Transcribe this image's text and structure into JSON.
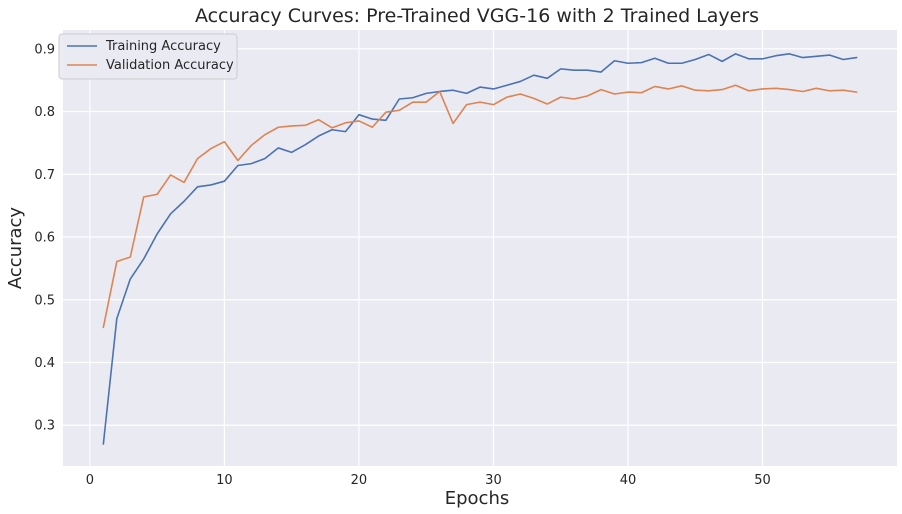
{
  "chart_data": {
    "type": "line",
    "title": "Accuracy Curves: Pre-Trained VGG-16 with 2 Trained Layers",
    "xlabel": "Epochs",
    "ylabel": "Accuracy",
    "xlim": [
      -2,
      60
    ],
    "ylim": [
      0.235,
      0.93
    ],
    "xticks": [
      0,
      10,
      20,
      30,
      40,
      50
    ],
    "yticks": [
      0.3,
      0.4,
      0.5,
      0.6,
      0.7,
      0.8,
      0.9
    ],
    "grid": true,
    "legend_position": "top-left",
    "x": [
      1,
      2,
      3,
      4,
      5,
      6,
      7,
      8,
      9,
      10,
      11,
      12,
      13,
      14,
      15,
      16,
      17,
      18,
      19,
      20,
      21,
      22,
      23,
      24,
      25,
      26,
      27,
      28,
      29,
      30,
      31,
      32,
      33,
      34,
      35,
      36,
      37,
      38,
      39,
      40,
      41,
      42,
      43,
      44,
      45,
      46,
      47,
      48,
      49,
      50,
      51,
      52,
      53,
      54,
      55,
      56,
      57
    ],
    "series": [
      {
        "name": "Training Accuracy",
        "color": "#4c72b0",
        "values": [
          0.27,
          0.47,
          0.533,
          0.565,
          0.605,
          0.637,
          0.657,
          0.68,
          0.683,
          0.689,
          0.714,
          0.717,
          0.725,
          0.742,
          0.735,
          0.747,
          0.761,
          0.771,
          0.768,
          0.795,
          0.788,
          0.786,
          0.82,
          0.822,
          0.829,
          0.832,
          0.834,
          0.829,
          0.839,
          0.836,
          0.842,
          0.848,
          0.858,
          0.853,
          0.868,
          0.866,
          0.866,
          0.863,
          0.881,
          0.877,
          0.878,
          0.885,
          0.877,
          0.877,
          0.883,
          0.891,
          0.88,
          0.892,
          0.884,
          0.884,
          0.889,
          0.892,
          0.886,
          0.888,
          0.89,
          0.883,
          0.886
        ]
      },
      {
        "name": "Validation Accuracy",
        "color": "#dd8452",
        "values": [
          0.456,
          0.561,
          0.568,
          0.664,
          0.668,
          0.699,
          0.687,
          0.725,
          0.741,
          0.752,
          0.722,
          0.746,
          0.763,
          0.775,
          0.777,
          0.778,
          0.787,
          0.774,
          0.782,
          0.785,
          0.775,
          0.799,
          0.802,
          0.815,
          0.815,
          0.832,
          0.781,
          0.811,
          0.815,
          0.811,
          0.823,
          0.828,
          0.821,
          0.812,
          0.823,
          0.82,
          0.825,
          0.835,
          0.828,
          0.831,
          0.83,
          0.84,
          0.836,
          0.841,
          0.834,
          0.833,
          0.835,
          0.842,
          0.833,
          0.836,
          0.837,
          0.835,
          0.832,
          0.837,
          0.833,
          0.834,
          0.831
        ]
      }
    ]
  }
}
